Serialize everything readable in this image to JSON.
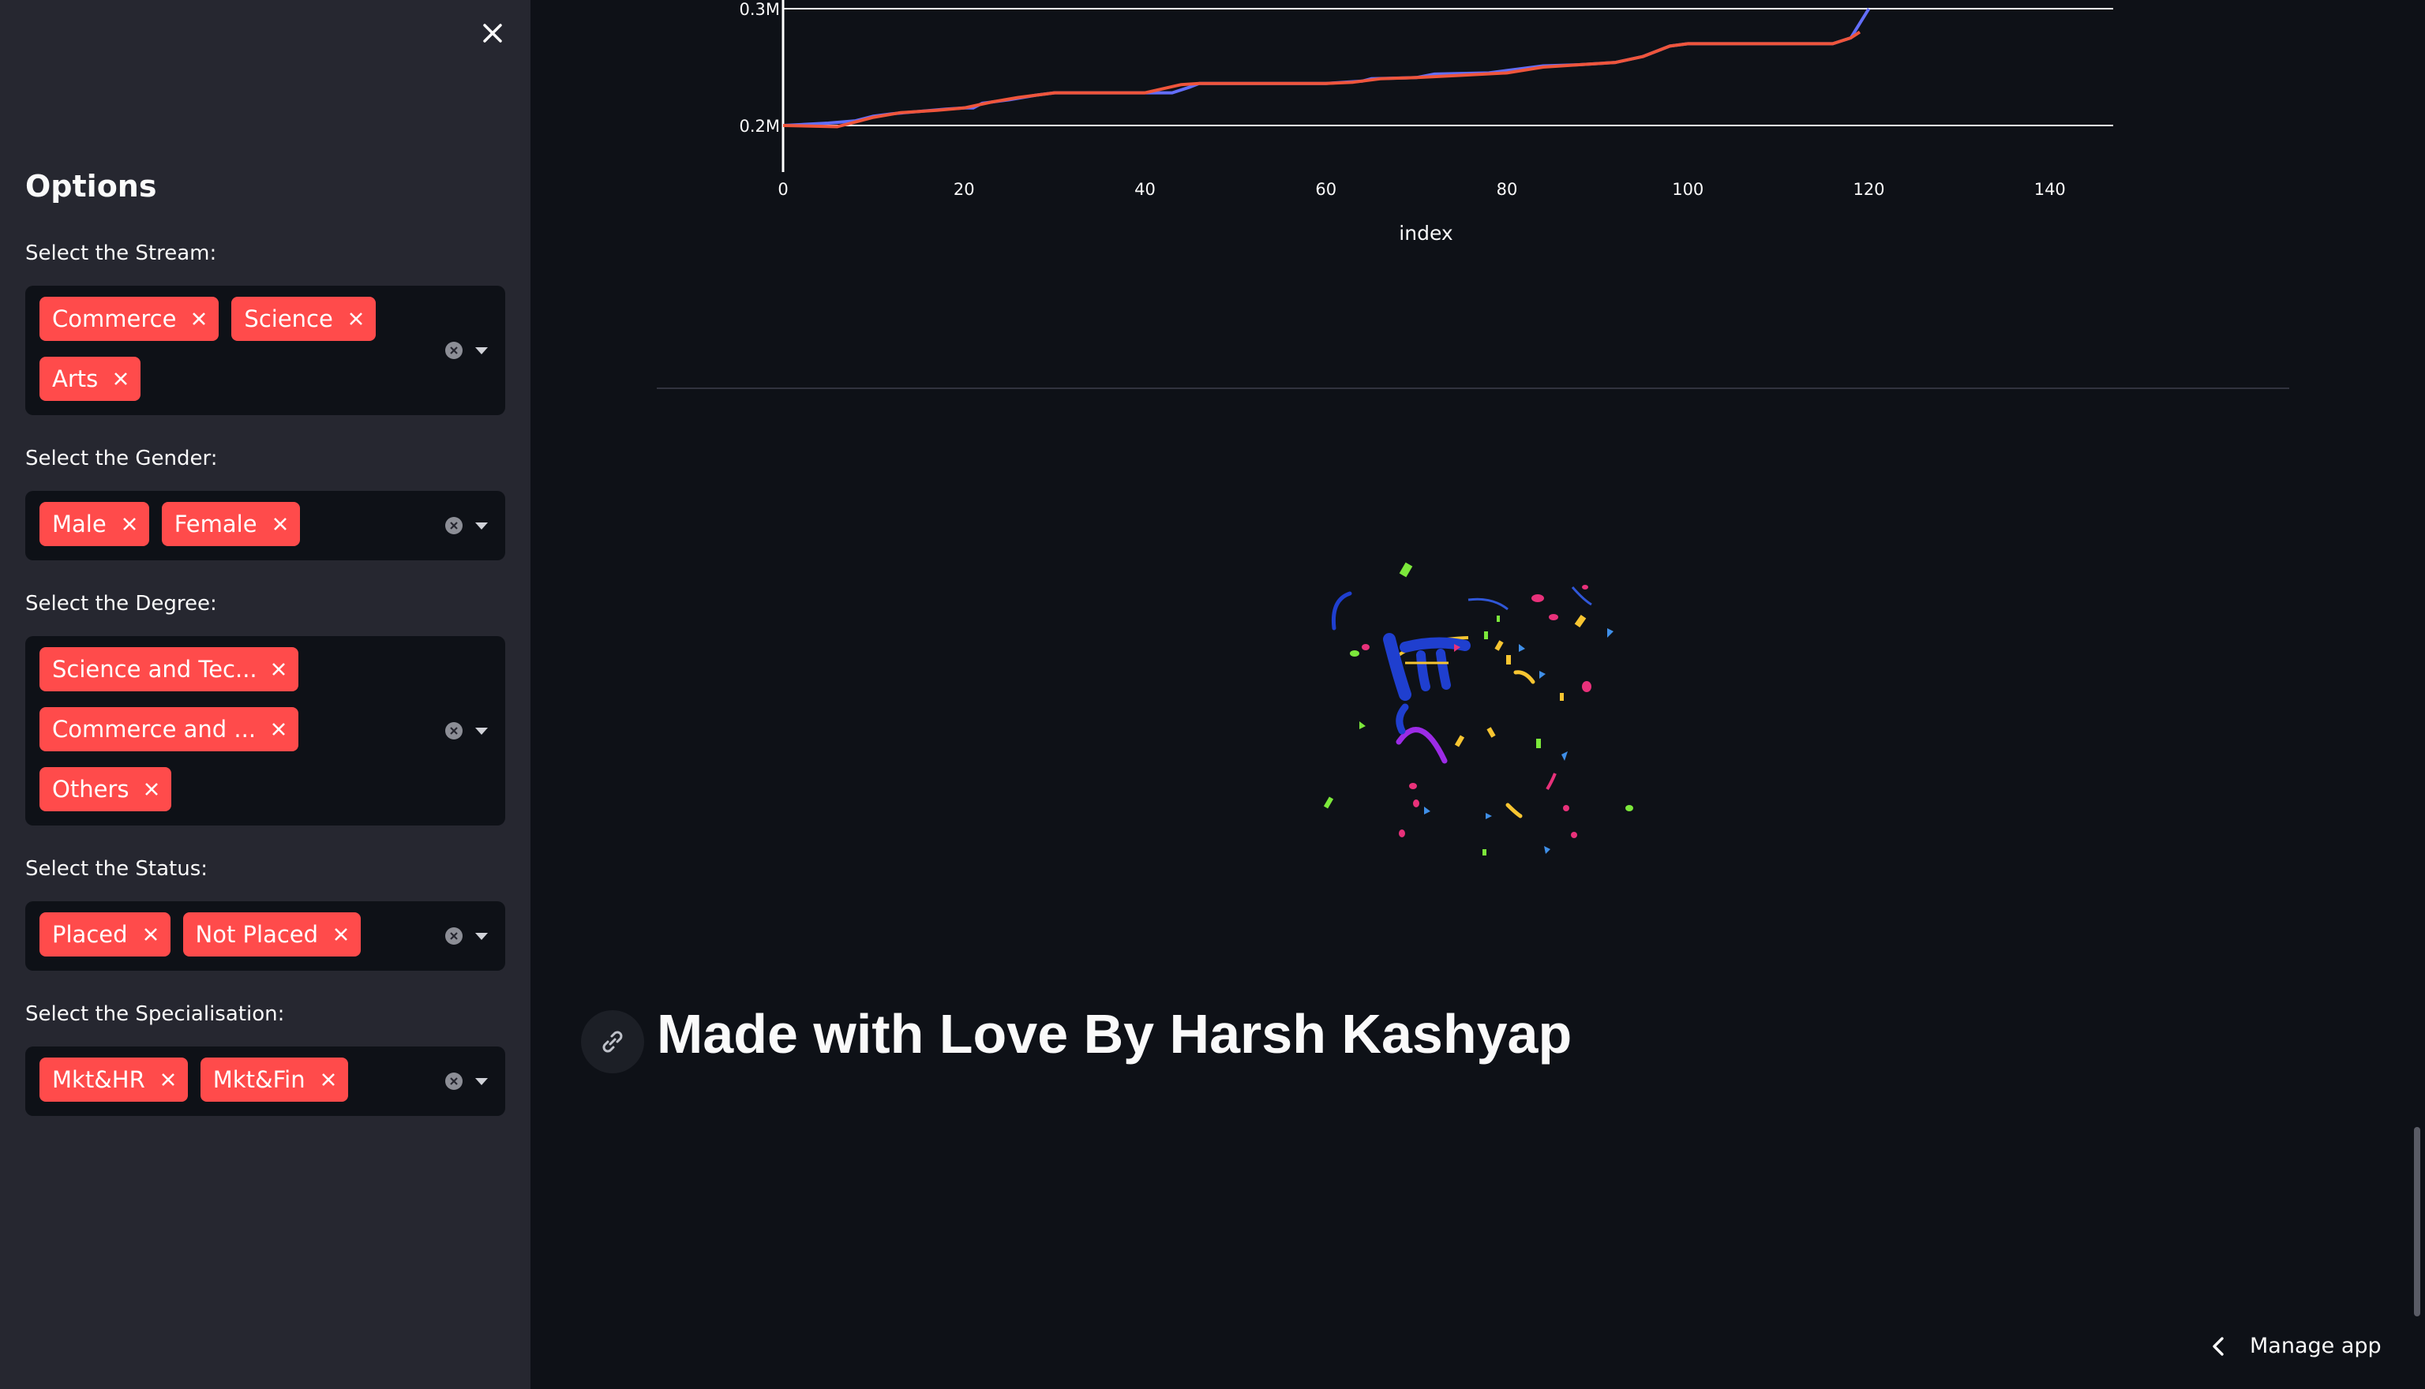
{
  "sidebar": {
    "title": "Options",
    "filters": [
      {
        "label": "Select the Stream:",
        "chips": [
          "Commerce",
          "Science",
          "Arts"
        ]
      },
      {
        "label": "Select the Gender:",
        "chips": [
          "Male",
          "Female"
        ]
      },
      {
        "label": "Select the Degree:",
        "chips": [
          "Science and Tec...",
          "Commerce and ...",
          "Others"
        ]
      },
      {
        "label": "Select the Status:",
        "chips": [
          "Placed",
          "Not Placed"
        ]
      },
      {
        "label": "Select the Specialisation:",
        "chips": [
          "Mkt&HR",
          "Mkt&Fin"
        ]
      }
    ]
  },
  "chart_data": {
    "type": "line",
    "xlabel": "index",
    "ylabel": "",
    "xlim": [
      0,
      147
    ],
    "ylim": [
      0.2,
      0.3
    ],
    "x_ticks": [
      "0",
      "20",
      "40",
      "60",
      "80",
      "100",
      "120",
      "140"
    ],
    "y_ticks": [
      "0.2M",
      "0.3M"
    ],
    "series": [
      {
        "color": "#636efa",
        "points": [
          [
            0,
            0.2
          ],
          [
            5,
            0.202
          ],
          [
            8,
            0.204
          ],
          [
            10,
            0.208
          ],
          [
            12,
            0.21
          ],
          [
            15,
            0.212
          ],
          [
            18,
            0.214
          ],
          [
            20,
            0.215
          ],
          [
            21,
            0.215
          ],
          [
            22,
            0.219
          ],
          [
            25,
            0.222
          ],
          [
            28,
            0.226
          ],
          [
            30,
            0.228
          ],
          [
            35,
            0.228
          ],
          [
            40,
            0.228
          ],
          [
            43,
            0.228
          ],
          [
            45,
            0.233
          ],
          [
            46,
            0.236
          ],
          [
            50,
            0.236
          ],
          [
            55,
            0.236
          ],
          [
            60,
            0.236
          ],
          [
            64,
            0.238
          ],
          [
            65,
            0.24
          ],
          [
            70,
            0.241
          ],
          [
            72,
            0.244
          ],
          [
            78,
            0.245
          ],
          [
            80,
            0.247
          ],
          [
            84,
            0.251
          ],
          [
            88,
            0.252
          ],
          [
            92,
            0.254
          ],
          [
            95,
            0.259
          ],
          [
            98,
            0.268
          ],
          [
            100,
            0.27
          ],
          [
            110,
            0.27
          ],
          [
            116,
            0.27
          ],
          [
            118,
            0.275
          ],
          [
            120,
            0.3
          ]
        ]
      },
      {
        "color": "#ef553b",
        "points": [
          [
            0,
            0.2
          ],
          [
            6,
            0.199
          ],
          [
            8,
            0.203
          ],
          [
            10,
            0.207
          ],
          [
            13,
            0.211
          ],
          [
            17,
            0.213
          ],
          [
            20,
            0.215
          ],
          [
            23,
            0.22
          ],
          [
            26,
            0.224
          ],
          [
            30,
            0.228
          ],
          [
            36,
            0.228
          ],
          [
            40,
            0.228
          ],
          [
            44,
            0.235
          ],
          [
            46,
            0.236
          ],
          [
            55,
            0.236
          ],
          [
            60,
            0.236
          ],
          [
            63,
            0.237
          ],
          [
            66,
            0.24
          ],
          [
            70,
            0.241
          ],
          [
            75,
            0.243
          ],
          [
            80,
            0.245
          ],
          [
            84,
            0.25
          ],
          [
            88,
            0.252
          ],
          [
            92,
            0.254
          ],
          [
            95,
            0.259
          ],
          [
            98,
            0.268
          ],
          [
            100,
            0.27
          ],
          [
            110,
            0.27
          ],
          [
            116,
            0.27
          ],
          [
            118,
            0.275
          ],
          [
            119,
            0.28
          ]
        ]
      }
    ]
  },
  "footer": {
    "heading": "Made with Love By Harsh Kashyap"
  },
  "manage_app": {
    "label": "Manage app"
  }
}
